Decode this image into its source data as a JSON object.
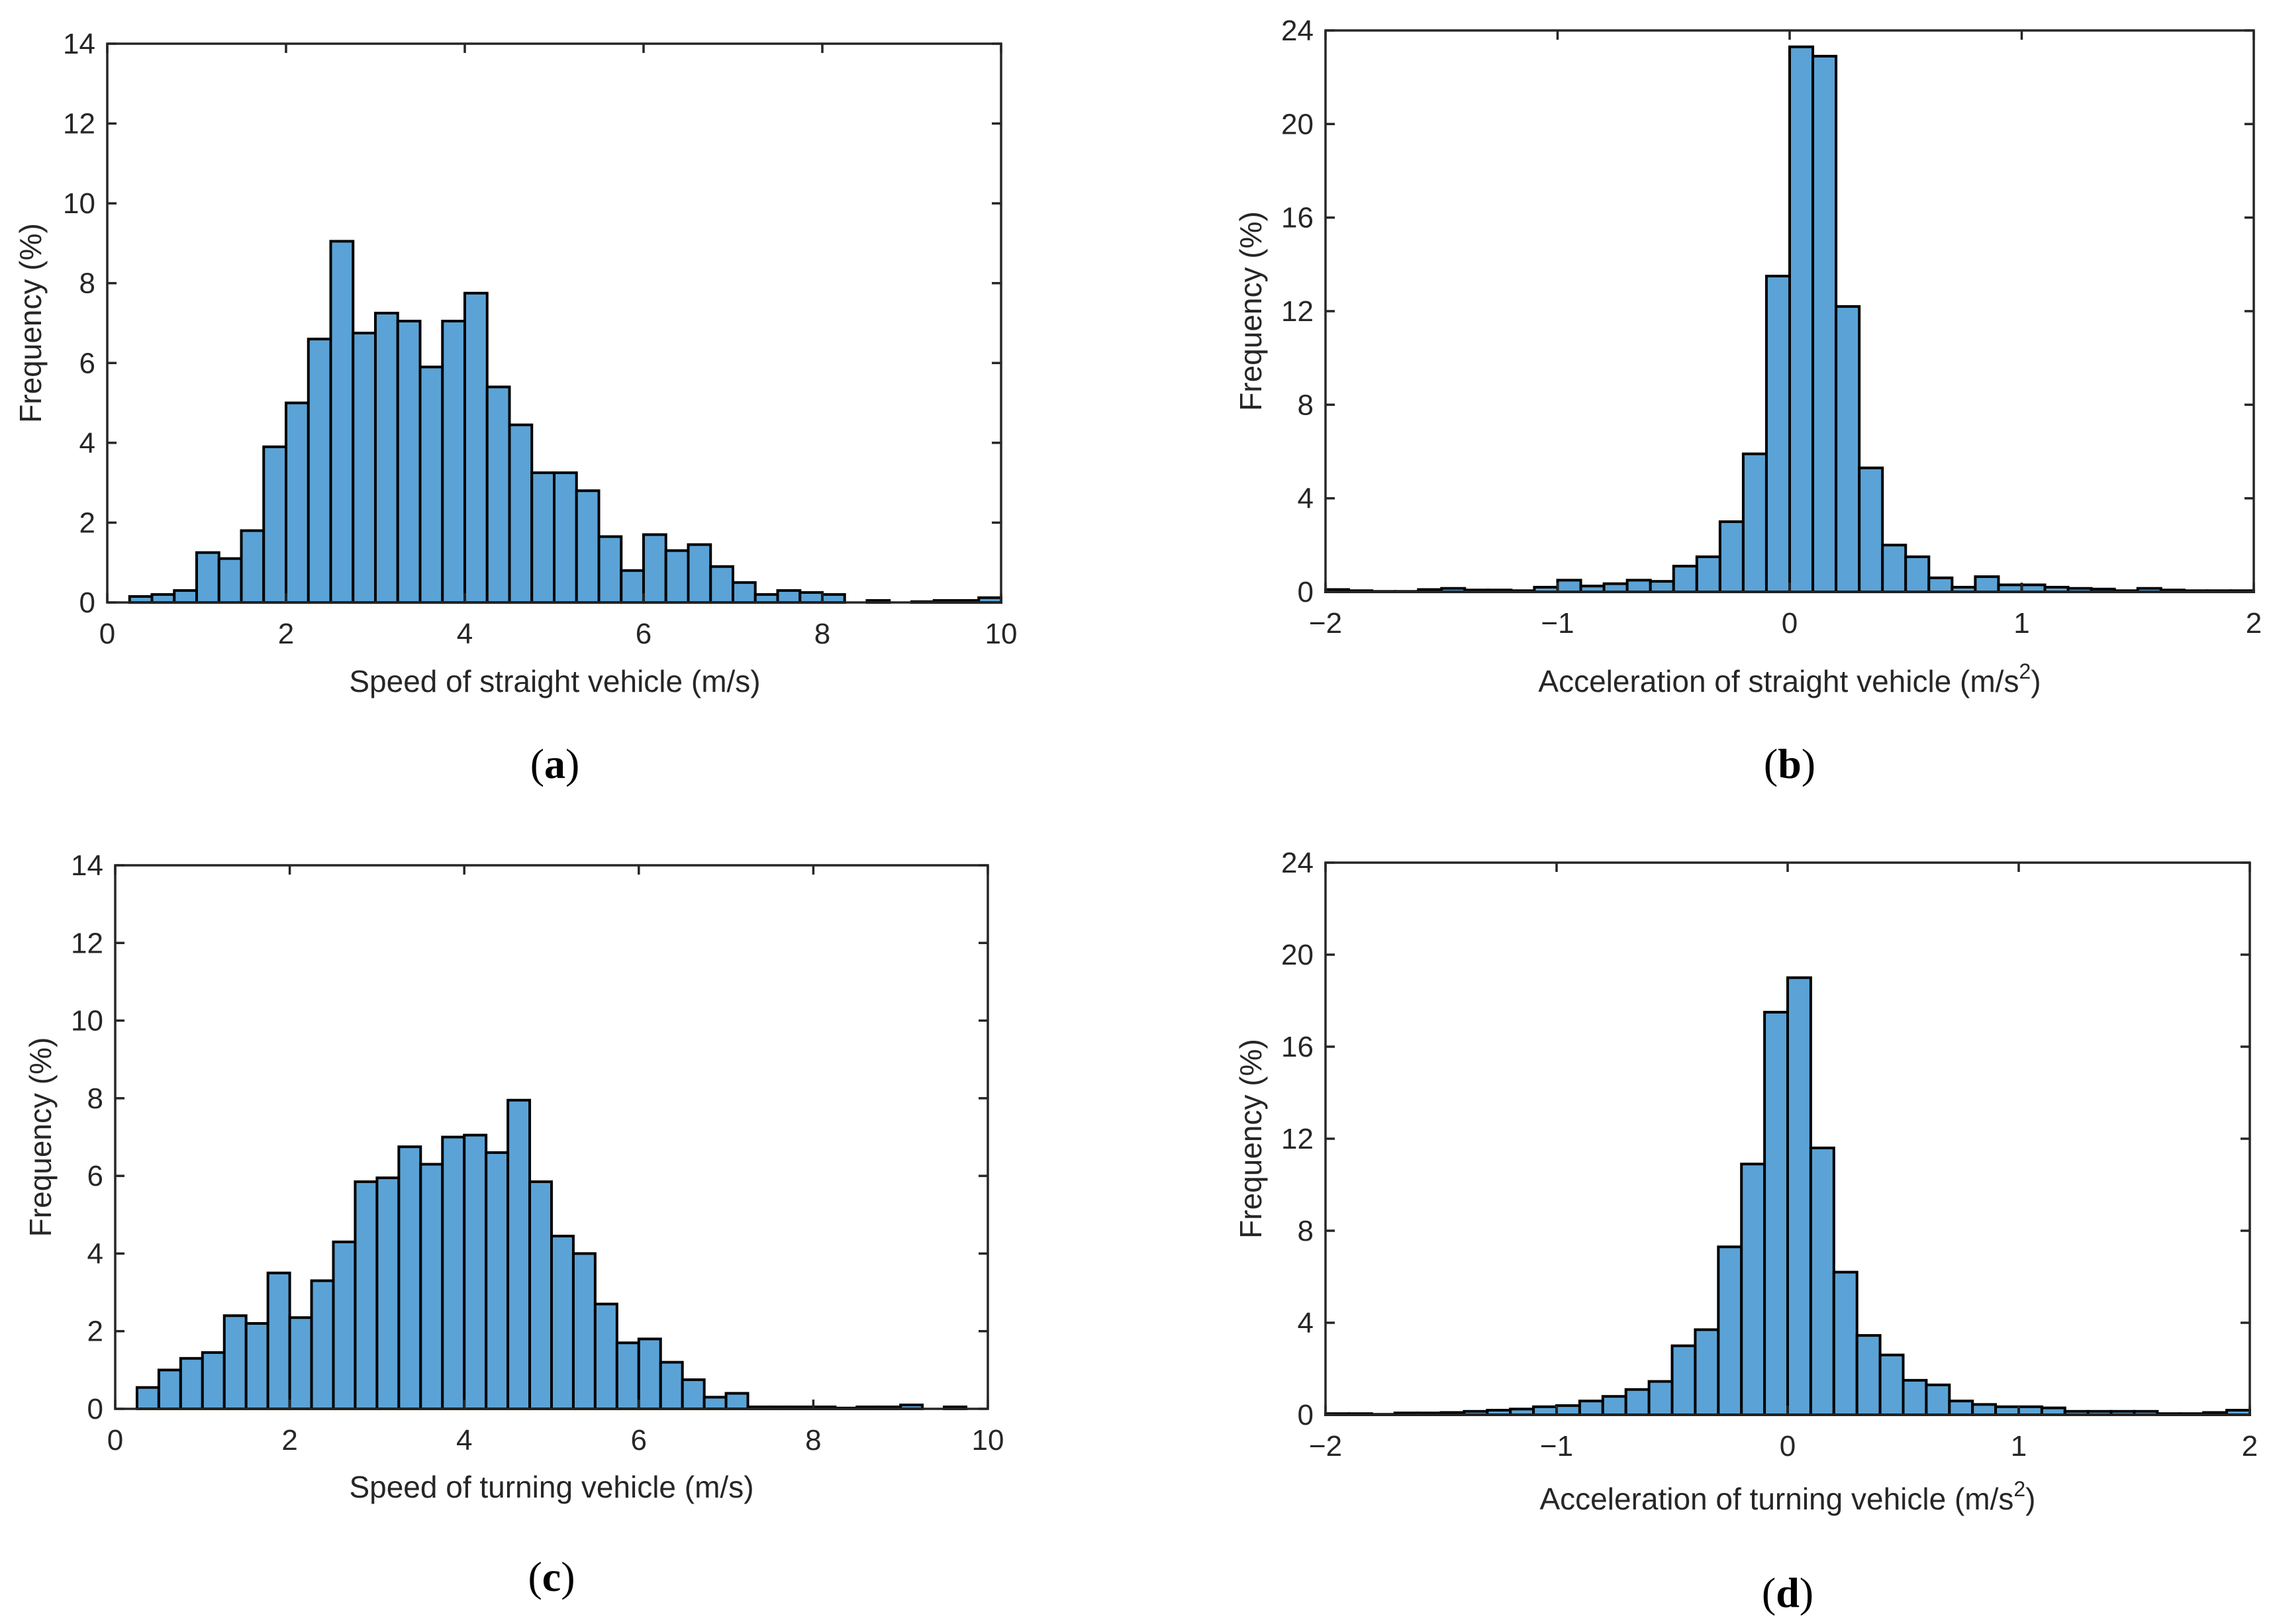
{
  "colors": {
    "bar_fill": "#5ba3d6",
    "bar_edge": "#000000",
    "axis": "#262626"
  },
  "chart_data": [
    {
      "type": "bar",
      "title": "",
      "caption_open": "(",
      "caption_letter": "a",
      "caption_close": ")",
      "xlabel": "Speed of straight vehicle (m/s)",
      "xlabel_sup": "",
      "xlabel_tail": "",
      "ylabel": "Frequency (%)",
      "xlim": [
        0,
        10
      ],
      "ylim": [
        0,
        14
      ],
      "xticks": [
        0,
        2,
        4,
        6,
        8,
        10
      ],
      "xtick_labels": [
        "0",
        "2",
        "4",
        "6",
        "8",
        "10"
      ],
      "yticks": [
        0,
        2,
        4,
        6,
        8,
        10,
        12,
        14
      ],
      "ytick_labels": [
        "0",
        "2",
        "4",
        "6",
        "8",
        "10",
        "12",
        "14"
      ],
      "bin_edges_start": 0.25,
      "bin_width": 0.25,
      "values": [
        0.15,
        0.2,
        0.3,
        1.25,
        1.1,
        1.8,
        3.9,
        5.0,
        6.6,
        9.05,
        6.75,
        7.25,
        7.05,
        5.9,
        7.05,
        7.75,
        5.4,
        4.45,
        3.25,
        3.25,
        2.8,
        1.65,
        0.8,
        1.7,
        1.3,
        1.45,
        0.9,
        0.5,
        0.2,
        0.3,
        0.25,
        0.2,
        0.0,
        0.05,
        0.0,
        0.02,
        0.05,
        0.05,
        0.12
      ]
    },
    {
      "type": "bar",
      "title": "",
      "caption_open": "(",
      "caption_letter": "b",
      "caption_close": ")",
      "xlabel": "Acceleration of straight vehicle (m/s",
      "xlabel_sup": "2",
      "xlabel_tail": ")",
      "ylabel": "Frequency (%)",
      "xlim": [
        -2,
        2
      ],
      "ylim": [
        0,
        24
      ],
      "xticks": [
        -2,
        -1,
        0,
        1,
        2
      ],
      "xtick_labels": [
        "−2",
        "−1",
        "0",
        "1",
        "2"
      ],
      "yticks": [
        0,
        4,
        8,
        12,
        16,
        20,
        24
      ],
      "ytick_labels": [
        "0",
        "4",
        "8",
        "12",
        "16",
        "20",
        "24"
      ],
      "bin_edges_start": -2.0,
      "bin_width": 0.1,
      "values": [
        0.1,
        0.05,
        0.02,
        0.02,
        0.1,
        0.15,
        0.08,
        0.08,
        0.05,
        0.2,
        0.5,
        0.25,
        0.35,
        0.5,
        0.45,
        1.1,
        1.5,
        3.0,
        5.9,
        13.5,
        23.3,
        22.9,
        12.2,
        5.3,
        2.0,
        1.5,
        0.6,
        0.2,
        0.65,
        0.3,
        0.3,
        0.2,
        0.15,
        0.12,
        0.05,
        0.15,
        0.08,
        0.05,
        0.05,
        0.05
      ]
    },
    {
      "type": "bar",
      "title": "",
      "caption_open": "(",
      "caption_letter": "c",
      "caption_close": ")",
      "xlabel": "Speed of turning vehicle (m/s)",
      "xlabel_sup": "",
      "xlabel_tail": "",
      "ylabel": "Frequency (%)",
      "xlim": [
        0,
        10
      ],
      "ylim": [
        0,
        14
      ],
      "xticks": [
        0,
        2,
        4,
        6,
        8,
        10
      ],
      "xtick_labels": [
        "0",
        "2",
        "4",
        "6",
        "8",
        "10"
      ],
      "yticks": [
        0,
        2,
        4,
        6,
        8,
        10,
        12,
        14
      ],
      "ytick_labels": [
        "0",
        "2",
        "4",
        "6",
        "8",
        "10",
        "12",
        "14"
      ],
      "bin_edges_start": 0.25,
      "bin_width": 0.25,
      "values": [
        0.55,
        1.0,
        1.3,
        1.45,
        2.4,
        2.2,
        3.5,
        2.35,
        3.3,
        4.3,
        5.85,
        5.95,
        6.75,
        6.3,
        7.0,
        7.05,
        6.6,
        7.95,
        5.85,
        4.45,
        4.0,
        2.7,
        1.7,
        1.8,
        1.2,
        0.75,
        0.3,
        0.4,
        0.05,
        0.05,
        0.05,
        0.05,
        0.02,
        0.05,
        0.05,
        0.1,
        0.0,
        0.05,
        0.0
      ]
    },
    {
      "type": "bar",
      "title": "",
      "caption_open": "(",
      "caption_letter": "d",
      "caption_close": ")",
      "xlabel": "Acceleration of turning vehicle (m/s",
      "xlabel_sup": "2",
      "xlabel_tail": ")",
      "ylabel": "Frequency (%)",
      "xlim": [
        -2,
        2
      ],
      "ylim": [
        0,
        24
      ],
      "xticks": [
        -2,
        -1,
        0,
        1,
        2
      ],
      "xtick_labels": [
        "−2",
        "−1",
        "0",
        "1",
        "2"
      ],
      "yticks": [
        0,
        4,
        8,
        12,
        16,
        20,
        24
      ],
      "ytick_labels": [
        "0",
        "4",
        "8",
        "12",
        "16",
        "20",
        "24"
      ],
      "bin_edges_start": -2.0,
      "bin_width": 0.1,
      "values": [
        0.05,
        0.05,
        0.02,
        0.08,
        0.08,
        0.1,
        0.15,
        0.2,
        0.25,
        0.35,
        0.4,
        0.6,
        0.8,
        1.1,
        1.45,
        3.0,
        3.7,
        7.3,
        10.9,
        17.5,
        19.0,
        11.6,
        6.2,
        3.45,
        2.6,
        1.5,
        1.3,
        0.6,
        0.45,
        0.35,
        0.35,
        0.3,
        0.15,
        0.15,
        0.15,
        0.15,
        0.05,
        0.05,
        0.1,
        0.2
      ]
    }
  ]
}
